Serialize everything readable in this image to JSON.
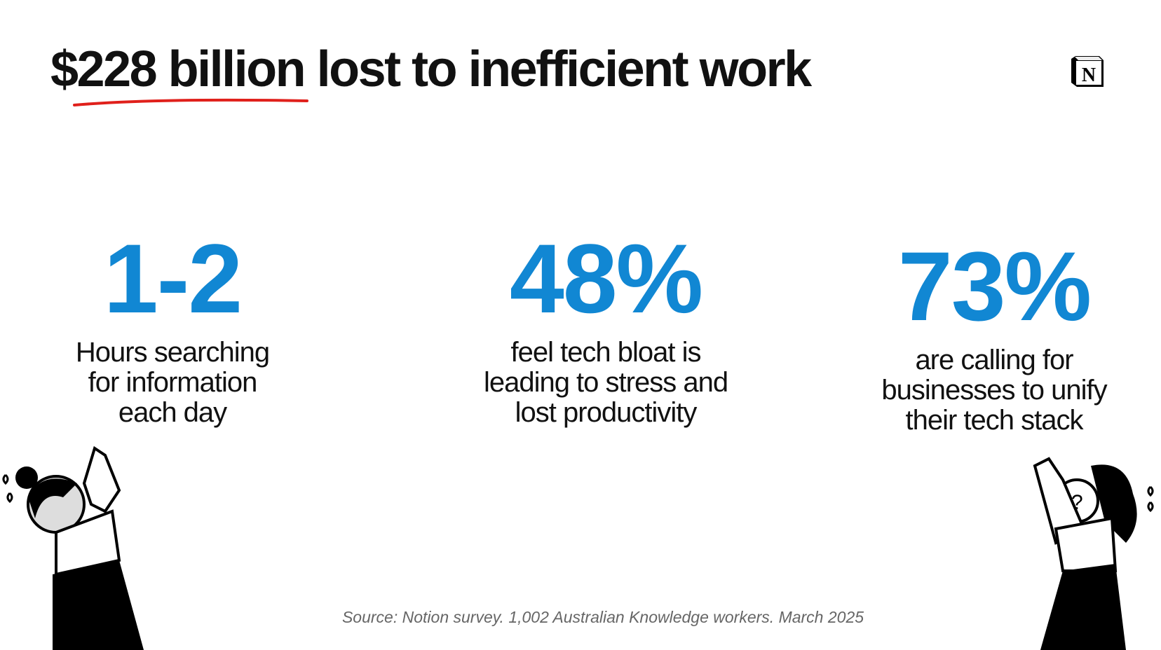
{
  "title": "$228 billion lost to inefficient work",
  "logo": {
    "name": "notion-logo",
    "letter": "N"
  },
  "accent_color": "#1187d3",
  "underline_color": "#e0201b",
  "stats": [
    {
      "value": "1-2",
      "label_lines": [
        "Hours searching",
        "for information",
        "each day"
      ]
    },
    {
      "value": "48%",
      "label_lines": [
        "feel tech bloat is",
        "leading to stress and",
        "lost productivity"
      ]
    },
    {
      "value": "73%",
      "label_lines": [
        "are calling for",
        "businesses to unify",
        "their tech stack"
      ]
    }
  ],
  "source": "Source: Notion survey. 1,002 Australian Knowledge workers. March 2025"
}
